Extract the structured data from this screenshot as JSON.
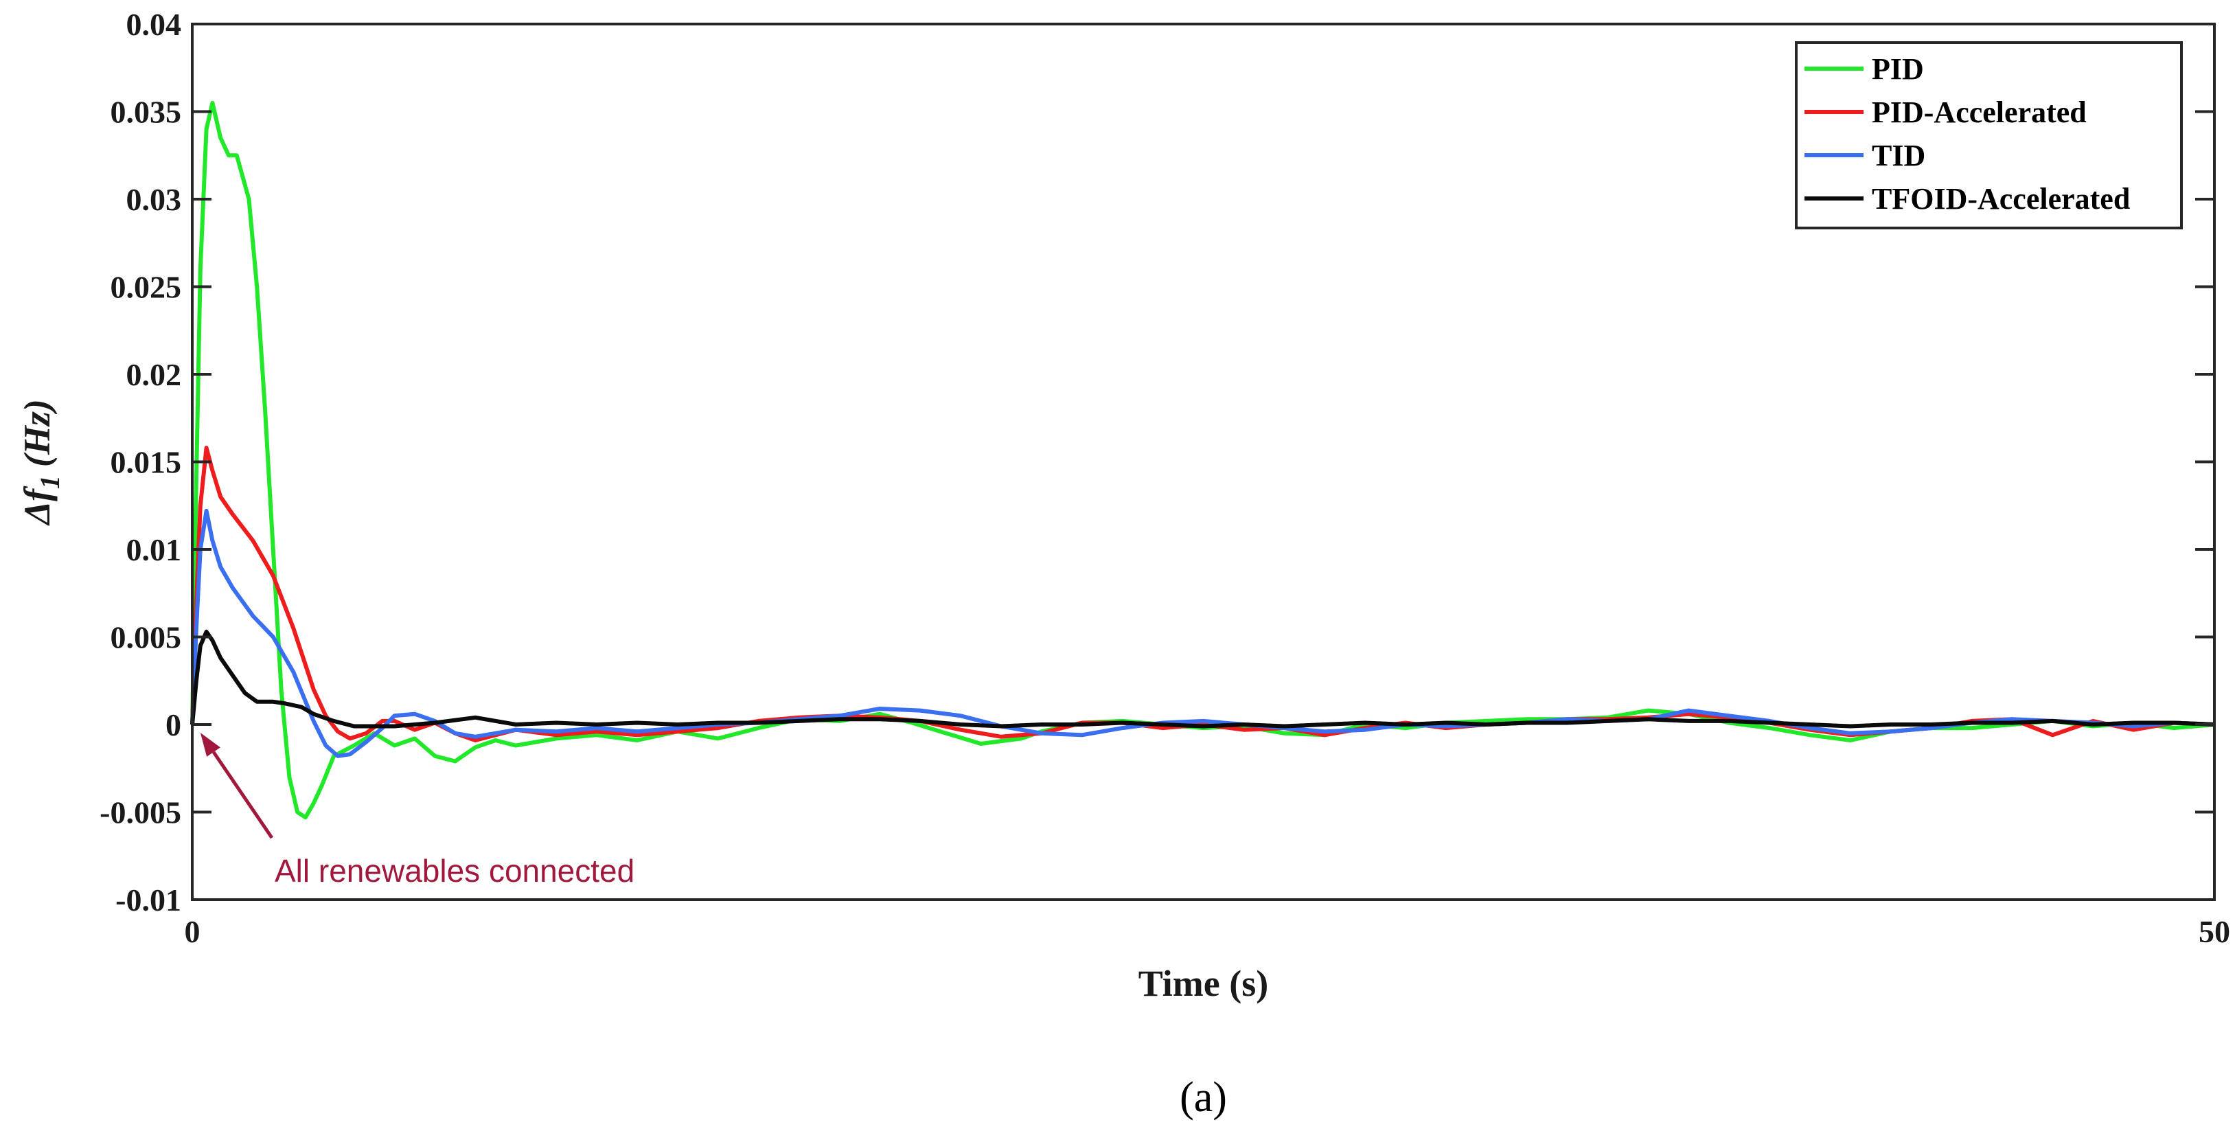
{
  "chart_data": {
    "type": "line",
    "title": "",
    "xlabel": "Time (s)",
    "ylabel_prefix": "Δf",
    "ylabel_sub": "1",
    "ylabel_unit": "(Hz)",
    "xlim": [
      0,
      50
    ],
    "ylim": [
      -0.01,
      0.04
    ],
    "xticks": [
      0,
      50
    ],
    "xtick_labels": [
      "0",
      "50"
    ],
    "yticks": [
      -0.01,
      -0.005,
      0,
      0.005,
      0.01,
      0.015,
      0.02,
      0.025,
      0.03,
      0.035,
      0.04
    ],
    "ytick_labels": [
      "-0.01",
      "-0.005",
      "0",
      "0.005",
      "0.01",
      "0.015",
      "0.02",
      "0.025",
      "0.03",
      "0.035",
      "0.04"
    ],
    "grid": false,
    "legend_position": "top-right",
    "annotation": {
      "text": "All renewables connected",
      "x": 0.1,
      "y": 0,
      "color": "#a0183c"
    },
    "caption": "(a)",
    "series": [
      {
        "name": "PID",
        "color": "#22e82a",
        "x": [
          0,
          0.1,
          0.2,
          0.35,
          0.5,
          0.7,
          0.9,
          1.1,
          1.4,
          1.6,
          1.8,
          2.0,
          2.2,
          2.4,
          2.6,
          2.8,
          3.0,
          3.2,
          3.5,
          4.0,
          4.5,
          5.0,
          5.5,
          6.0,
          6.5,
          7.0,
          7.5,
          8.0,
          9.0,
          10.0,
          11.0,
          12.0,
          13.0,
          14.0,
          15.0,
          16.0,
          17.0,
          17.8,
          18.5,
          19.5,
          20.5,
          21.0,
          22.0,
          23.0,
          24.0,
          25.0,
          26.0,
          27.0,
          28.0,
          29.0,
          30.0,
          31.0,
          32.0,
          33.0,
          34.0,
          35.0,
          36.0,
          37.0,
          38.0,
          39.0,
          40.0,
          41.0,
          42.0,
          43.0,
          44.0,
          45.0,
          46.0,
          47.0,
          48.0,
          49.0,
          50.0
        ],
        "y": [
          0,
          0.014,
          0.026,
          0.034,
          0.0355,
          0.0335,
          0.0325,
          0.0325,
          0.03,
          0.025,
          0.018,
          0.01,
          0.002,
          -0.003,
          -0.005,
          -0.0053,
          -0.0045,
          -0.0035,
          -0.0018,
          -0.0012,
          -0.0005,
          -0.0012,
          -0.0008,
          -0.0018,
          -0.0021,
          -0.0013,
          -0.0009,
          -0.0012,
          -0.0008,
          -0.0006,
          -0.0009,
          -0.0004,
          -0.0008,
          -0.0002,
          0.0003,
          0.0002,
          0.0006,
          0.0001,
          -0.0004,
          -0.0011,
          -0.0008,
          -0.0004,
          0.0001,
          0.0002,
          0.0,
          -0.0002,
          -0.0001,
          -0.0005,
          -0.0006,
          0.0,
          -0.0002,
          0.0001,
          0.0002,
          0.0003,
          0.0003,
          0.0004,
          0.0008,
          0.0006,
          0.0001,
          -0.0002,
          -0.0006,
          -0.0009,
          -0.0004,
          -0.0002,
          -0.0002,
          0.0,
          0.0002,
          -0.0001,
          0.0001,
          -0.0002,
          0.0
        ]
      },
      {
        "name": "PID-Accelerated",
        "color": "#ee1c1c",
        "x": [
          0,
          0.1,
          0.2,
          0.35,
          0.5,
          0.7,
          1.0,
          1.5,
          2.0,
          2.5,
          3.0,
          3.3,
          3.6,
          3.9,
          4.3,
          4.7,
          5.0,
          5.5,
          6.0,
          6.5,
          7.0,
          8.0,
          9.0,
          10.0,
          11.0,
          12.0,
          13.0,
          14.0,
          15.0,
          16.0,
          17.0,
          18.0,
          19.0,
          20.0,
          21.0,
          22.0,
          23.0,
          24.0,
          25.0,
          26.0,
          27.0,
          28.0,
          29.0,
          30.0,
          31.0,
          32.0,
          33.0,
          34.0,
          35.0,
          36.0,
          37.0,
          38.0,
          39.0,
          40.0,
          41.0,
          42.0,
          43.0,
          44.0,
          45.0,
          46.0,
          47.0,
          48.0,
          49.0,
          50.0
        ],
        "y": [
          0,
          0.007,
          0.0125,
          0.0158,
          0.0145,
          0.013,
          0.012,
          0.0105,
          0.0085,
          0.0055,
          0.002,
          0.0005,
          -0.0004,
          -0.0008,
          -0.0005,
          0.0002,
          0.0002,
          -0.0003,
          0.0001,
          -0.0005,
          -0.0009,
          -0.0003,
          -0.0006,
          -0.0004,
          -0.0006,
          -0.0004,
          -0.0002,
          0.0002,
          0.0004,
          0.0005,
          0.0004,
          0.0002,
          -0.0003,
          -0.0007,
          -0.0005,
          0.0001,
          0.0001,
          -0.0002,
          0.0,
          -0.0003,
          -0.0002,
          -0.0006,
          -0.0002,
          0.0001,
          -0.0002,
          0.0,
          0.0001,
          0.0003,
          0.0003,
          0.0004,
          0.0006,
          0.0004,
          0.0001,
          -0.0003,
          -0.0006,
          -0.0004,
          -0.0002,
          0.0002,
          0.0003,
          -0.0006,
          0.0002,
          -0.0003,
          0.0001,
          0.0
        ]
      },
      {
        "name": "TID",
        "color": "#3a6ff0",
        "x": [
          0,
          0.1,
          0.2,
          0.35,
          0.5,
          0.7,
          1.0,
          1.5,
          2.0,
          2.5,
          3.0,
          3.3,
          3.6,
          3.9,
          4.3,
          4.7,
          5.0,
          5.5,
          6.0,
          6.5,
          7.0,
          8.0,
          9.0,
          10.0,
          11.0,
          12.0,
          13.0,
          14.0,
          15.0,
          16.0,
          17.0,
          18.0,
          19.0,
          20.0,
          21.0,
          22.0,
          23.0,
          24.0,
          25.0,
          26.0,
          27.0,
          28.0,
          29.0,
          30.0,
          31.0,
          32.0,
          33.0,
          34.0,
          35.0,
          36.0,
          37.0,
          38.0,
          39.0,
          40.0,
          41.0,
          42.0,
          43.0,
          44.0,
          45.0,
          46.0,
          47.0,
          48.0,
          49.0,
          50.0
        ],
        "y": [
          0,
          0.0055,
          0.01,
          0.0122,
          0.0105,
          0.009,
          0.0078,
          0.0062,
          0.005,
          0.003,
          0.0002,
          -0.0012,
          -0.0018,
          -0.0017,
          -0.001,
          -0.0002,
          0.0005,
          0.0006,
          0.0002,
          -0.0005,
          -0.0007,
          -0.0003,
          -0.0004,
          -0.0002,
          -0.0004,
          -0.0002,
          0.0,
          0.0001,
          0.0003,
          0.0005,
          0.0009,
          0.0008,
          0.0005,
          -0.0001,
          -0.0005,
          -0.0006,
          -0.0002,
          0.0001,
          0.0002,
          0.0,
          -0.0002,
          -0.0004,
          -0.0003,
          0.0,
          -0.0001,
          0.0,
          0.0001,
          0.0003,
          0.0002,
          0.0003,
          0.0008,
          0.0005,
          0.0002,
          -0.0002,
          -0.0005,
          -0.0004,
          -0.0002,
          0.0001,
          0.0003,
          0.0002,
          0.0001,
          -0.0001,
          0.0001,
          0.0
        ]
      },
      {
        "name": "TFOID-Accelerated",
        "color": "#0a0a0a",
        "x": [
          0,
          0.1,
          0.2,
          0.35,
          0.5,
          0.7,
          1.0,
          1.3,
          1.6,
          2.0,
          2.3,
          2.7,
          3.0,
          3.5,
          4.0,
          5.0,
          6.0,
          7.0,
          8.0,
          9.0,
          10.0,
          11.0,
          12.0,
          13.0,
          14.0,
          15.0,
          16.0,
          17.0,
          18.0,
          19.0,
          20.0,
          21.0,
          22.0,
          23.0,
          24.0,
          25.0,
          26.0,
          27.0,
          28.0,
          29.0,
          30.0,
          31.0,
          32.0,
          33.0,
          34.0,
          35.0,
          36.0,
          37.0,
          38.0,
          39.0,
          40.0,
          41.0,
          42.0,
          43.0,
          44.0,
          45.0,
          46.0,
          47.0,
          48.0,
          49.0,
          50.0
        ],
        "y": [
          0,
          0.0025,
          0.0045,
          0.0053,
          0.0048,
          0.0038,
          0.0028,
          0.0018,
          0.0013,
          0.0013,
          0.0012,
          0.001,
          0.0006,
          0.0002,
          -0.0001,
          -0.0001,
          0.0001,
          0.0004,
          0.0,
          0.0001,
          0.0,
          0.0001,
          0.0,
          0.0001,
          0.0001,
          0.0002,
          0.0003,
          0.0003,
          0.0002,
          0.0,
          -0.0001,
          0.0,
          0.0,
          0.0001,
          0.0,
          -0.0001,
          0.0,
          -0.0001,
          0.0,
          0.0001,
          0.0,
          0.0001,
          0.0,
          0.0001,
          0.0001,
          0.0002,
          0.0003,
          0.0002,
          0.0002,
          0.0001,
          0.0,
          -0.0001,
          0.0,
          0.0,
          0.0001,
          0.0001,
          0.0002,
          0.0,
          0.0001,
          0.0001,
          0.0
        ]
      }
    ]
  }
}
